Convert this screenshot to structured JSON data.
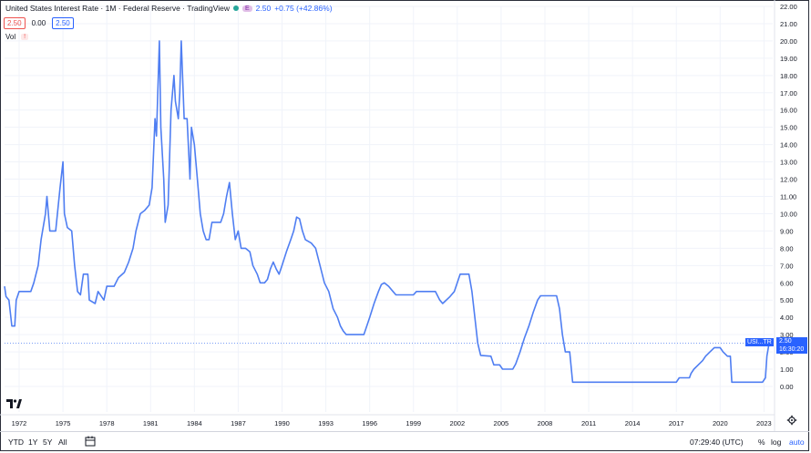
{
  "header": {
    "title": "United States Interest Rate · 1M · Federal Reserve · TradingView",
    "badge_e": "E",
    "last_value": "2.50",
    "change": "+0.75 (+42.86%)"
  },
  "values_row": {
    "v1": "2.50",
    "v2": "0.00",
    "v3": "2.50"
  },
  "volume": {
    "label": "Vol",
    "warn": "!"
  },
  "last_label": {
    "ticker": "USI...TR",
    "price": "2.50",
    "countdown": "16:30:20"
  },
  "footer": {
    "ranges": [
      "YTD",
      "1Y",
      "5Y",
      "All"
    ],
    "clock": "07:29:40 (UTC)",
    "percent": "%",
    "log": "log",
    "auto": "auto"
  },
  "colors": {
    "line": "#4f7ef2",
    "accent": "#2962ff"
  },
  "chart_data": {
    "type": "line",
    "title": "United States Interest Rate",
    "series": [
      {
        "name": "United States Interest Rate",
        "points": [
          [
            1971.0,
            5.8
          ],
          [
            1971.1,
            5.2
          ],
          [
            1971.3,
            5.0
          ],
          [
            1971.5,
            3.5
          ],
          [
            1971.7,
            3.5
          ],
          [
            1971.8,
            5.0
          ],
          [
            1972.0,
            5.5
          ],
          [
            1972.5,
            5.5
          ],
          [
            1972.8,
            5.5
          ],
          [
            1973.0,
            6.0
          ],
          [
            1973.3,
            7.0
          ],
          [
            1973.5,
            8.5
          ],
          [
            1973.8,
            10.0
          ],
          [
            1973.9,
            11.0
          ],
          [
            1974.0,
            10.0
          ],
          [
            1974.1,
            9.0
          ],
          [
            1974.5,
            9.0
          ],
          [
            1974.8,
            11.5
          ],
          [
            1975.0,
            13.0
          ],
          [
            1975.1,
            10.0
          ],
          [
            1975.3,
            9.2
          ],
          [
            1975.6,
            9.0
          ],
          [
            1975.8,
            7.0
          ],
          [
            1976.0,
            5.5
          ],
          [
            1976.2,
            5.3
          ],
          [
            1976.4,
            6.5
          ],
          [
            1976.7,
            6.5
          ],
          [
            1976.8,
            5.0
          ],
          [
            1977.2,
            4.8
          ],
          [
            1977.4,
            5.5
          ],
          [
            1977.8,
            5.0
          ],
          [
            1978.0,
            5.8
          ],
          [
            1978.5,
            5.8
          ],
          [
            1978.8,
            6.3
          ],
          [
            1979.2,
            6.6
          ],
          [
            1979.5,
            7.2
          ],
          [
            1979.8,
            8.0
          ],
          [
            1980.0,
            9.0
          ],
          [
            1980.3,
            10.0
          ],
          [
            1980.6,
            10.2
          ],
          [
            1980.9,
            10.5
          ],
          [
            1981.1,
            11.5
          ],
          [
            1981.3,
            15.5
          ],
          [
            1981.4,
            14.5
          ],
          [
            1981.6,
            20.0
          ],
          [
            1981.7,
            15.0
          ],
          [
            1981.9,
            12.0
          ],
          [
            1982.0,
            9.5
          ],
          [
            1982.2,
            10.5
          ],
          [
            1982.4,
            16.0
          ],
          [
            1982.6,
            18.0
          ],
          [
            1982.7,
            16.5
          ],
          [
            1982.9,
            15.5
          ],
          [
            1983.0,
            17.0
          ],
          [
            1983.1,
            20.0
          ],
          [
            1983.3,
            15.5
          ],
          [
            1983.5,
            15.5
          ],
          [
            1983.7,
            12.0
          ],
          [
            1983.8,
            15.0
          ],
          [
            1984.0,
            14.0
          ],
          [
            1984.2,
            12.0
          ],
          [
            1984.4,
            10.0
          ],
          [
            1984.6,
            9.0
          ],
          [
            1984.8,
            8.5
          ],
          [
            1985.0,
            8.5
          ],
          [
            1985.2,
            9.5
          ],
          [
            1985.5,
            9.5
          ],
          [
            1985.8,
            9.5
          ],
          [
            1986.0,
            10.0
          ],
          [
            1986.2,
            11.0
          ],
          [
            1986.4,
            11.8
          ],
          [
            1986.6,
            10.0
          ],
          [
            1986.8,
            8.5
          ],
          [
            1987.0,
            9.0
          ],
          [
            1987.2,
            8.0
          ],
          [
            1987.5,
            8.0
          ],
          [
            1987.8,
            7.8
          ],
          [
            1988.0,
            7.0
          ],
          [
            1988.3,
            6.5
          ],
          [
            1988.5,
            6.0
          ],
          [
            1988.8,
            6.0
          ],
          [
            1989.0,
            6.2
          ],
          [
            1989.2,
            6.8
          ],
          [
            1989.4,
            7.2
          ],
          [
            1989.6,
            6.8
          ],
          [
            1989.8,
            6.5
          ],
          [
            1990.0,
            7.0
          ],
          [
            1990.3,
            7.8
          ],
          [
            1990.6,
            8.5
          ],
          [
            1990.8,
            9.0
          ],
          [
            1991.0,
            9.8
          ],
          [
            1991.2,
            9.7
          ],
          [
            1991.4,
            9.0
          ],
          [
            1991.6,
            8.5
          ],
          [
            1992.0,
            8.3
          ],
          [
            1992.3,
            8.0
          ],
          [
            1992.6,
            7.0
          ],
          [
            1992.9,
            6.0
          ],
          [
            1993.2,
            5.5
          ],
          [
            1993.5,
            4.5
          ],
          [
            1993.8,
            4.0
          ],
          [
            1994.0,
            3.5
          ],
          [
            1994.2,
            3.2
          ],
          [
            1994.4,
            3.0
          ],
          [
            1995.0,
            3.0
          ],
          [
            1995.6,
            3.0
          ],
          [
            1995.8,
            3.5
          ],
          [
            1996.0,
            4.0
          ],
          [
            1996.3,
            4.8
          ],
          [
            1996.6,
            5.5
          ],
          [
            1996.8,
            5.9
          ],
          [
            1997.0,
            6.0
          ],
          [
            1997.3,
            5.8
          ],
          [
            1997.6,
            5.5
          ],
          [
            1997.8,
            5.3
          ],
          [
            1999.0,
            5.3
          ],
          [
            1999.2,
            5.5
          ],
          [
            1999.6,
            5.5
          ],
          [
            2000.5,
            5.5
          ],
          [
            2000.8,
            5.0
          ],
          [
            2001.0,
            4.8
          ],
          [
            2001.5,
            5.2
          ],
          [
            2001.8,
            5.5
          ],
          [
            2002.0,
            6.0
          ],
          [
            2002.2,
            6.5
          ],
          [
            2002.8,
            6.5
          ],
          [
            2003.0,
            5.5
          ],
          [
            2003.2,
            4.0
          ],
          [
            2003.4,
            2.5
          ],
          [
            2003.6,
            1.8
          ],
          [
            2004.3,
            1.75
          ],
          [
            2004.5,
            1.25
          ],
          [
            2004.9,
            1.25
          ],
          [
            2005.1,
            1.0
          ],
          [
            2005.8,
            1.0
          ],
          [
            2006.0,
            1.3
          ],
          [
            2006.3,
            2.0
          ],
          [
            2006.6,
            2.8
          ],
          [
            2006.9,
            3.5
          ],
          [
            2007.2,
            4.3
          ],
          [
            2007.5,
            5.0
          ],
          [
            2007.7,
            5.25
          ],
          [
            2008.8,
            5.25
          ],
          [
            2009.0,
            4.5
          ],
          [
            2009.2,
            3.0
          ],
          [
            2009.4,
            2.0
          ],
          [
            2009.7,
            2.0
          ],
          [
            2009.9,
            0.25
          ],
          [
            2017.0,
            0.25
          ],
          [
            2017.2,
            0.5
          ],
          [
            2017.9,
            0.5
          ],
          [
            2018.0,
            0.75
          ],
          [
            2018.2,
            1.0
          ],
          [
            2018.5,
            1.25
          ],
          [
            2018.8,
            1.5
          ],
          [
            2019.0,
            1.75
          ],
          [
            2019.3,
            2.0
          ],
          [
            2019.6,
            2.25
          ],
          [
            2020.0,
            2.25
          ],
          [
            2020.2,
            2.0
          ],
          [
            2020.5,
            1.75
          ],
          [
            2020.7,
            1.75
          ],
          [
            2020.8,
            0.25
          ],
          [
            2022.9,
            0.25
          ],
          [
            2023.1,
            0.5
          ],
          [
            2023.2,
            1.75
          ],
          [
            2023.35,
            2.5
          ]
        ]
      }
    ],
    "y_ticks": [
      "0.00",
      "1.00",
      "2.00",
      "3.00",
      "4.00",
      "5.00",
      "6.00",
      "7.00",
      "8.00",
      "9.00",
      "10.00",
      "11.00",
      "12.00",
      "13.00",
      "14.00",
      "15.00",
      "16.00",
      "17.00",
      "18.00",
      "19.00",
      "20.00",
      "21.00",
      "22.00"
    ],
    "x_ticks": [
      "1972",
      "1975",
      "1978",
      "1981",
      "1984",
      "1987",
      "1990",
      "1993",
      "1996",
      "1999",
      "2002",
      "2005",
      "2008",
      "2011",
      "2014",
      "2017",
      "2020",
      "2023"
    ],
    "ylim": [
      0,
      22
    ],
    "xlim": [
      1971.0,
      2023.6
    ],
    "grid": true,
    "last_value": 2.5
  }
}
